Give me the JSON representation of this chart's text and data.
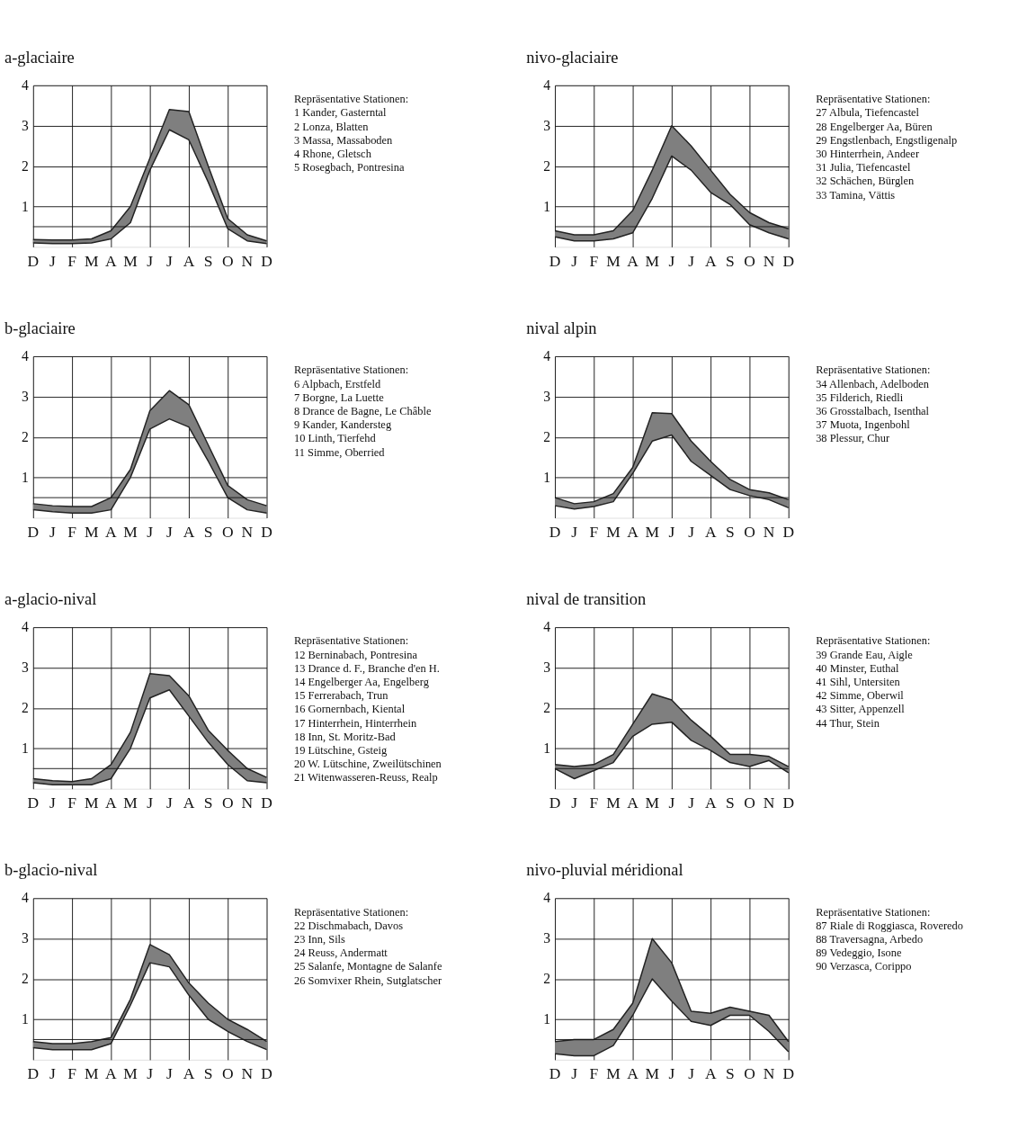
{
  "chart_data": [
    {
      "type": "line",
      "title": "a-glaciaire",
      "categories": [
        "D",
        "J",
        "F",
        "M",
        "A",
        "M",
        "J",
        "J",
        "A",
        "S",
        "O",
        "N",
        "D"
      ],
      "ylim": [
        0,
        4
      ],
      "yticks": [
        1,
        2,
        3,
        4
      ],
      "grid": true,
      "ref_lines": [
        {
          "axis": "y",
          "value": 0.5
        }
      ],
      "series": [
        {
          "color": "#222222",
          "values": [
            0.18,
            0.17,
            0.17,
            0.2,
            0.4,
            1.0,
            2.2,
            3.4,
            3.35,
            2.0,
            0.7,
            0.3,
            0.15
          ],
          "upper": [
            0.18,
            0.17,
            0.17,
            0.2,
            0.4,
            1.0,
            2.2,
            3.4,
            3.35,
            2.0,
            0.7,
            0.3,
            0.15
          ],
          "lower": [
            0.1,
            0.08,
            0.08,
            0.1,
            0.2,
            0.6,
            1.9,
            2.9,
            2.65,
            1.6,
            0.45,
            0.15,
            0.08
          ]
        },
        {
          "color": "#222222",
          "values": [
            0.1,
            0.08,
            0.08,
            0.1,
            0.2,
            0.6,
            1.9,
            2.9,
            2.65,
            1.6,
            0.45,
            0.15,
            0.08
          ]
        }
      ],
      "annotations": [
        "Repräsentative Stationen:",
        "1   Kander, Gasterntal",
        "2   Lonza, Blatten",
        "3   Massa, Massaboden",
        "4   Rhone, Gletsch",
        "5   Rosegbach, Pontresina"
      ]
    },
    {
      "type": "line",
      "title": "nivo-glaciaire",
      "categories": [
        "D",
        "J",
        "F",
        "M",
        "A",
        "M",
        "J",
        "J",
        "A",
        "S",
        "O",
        "N",
        "D"
      ],
      "ylim": [
        0,
        4
      ],
      "yticks": [
        1,
        2,
        3,
        4
      ],
      "grid": true,
      "ref_lines": [
        {
          "axis": "y",
          "value": 0.5
        }
      ],
      "series": [
        {
          "color": "#222222",
          "values": [
            0.4,
            0.3,
            0.3,
            0.4,
            0.9,
            1.9,
            3.0,
            2.5,
            1.9,
            1.3,
            0.85,
            0.6,
            0.45
          ],
          "upper": [
            0.4,
            0.3,
            0.3,
            0.4,
            0.9,
            1.9,
            3.0,
            2.5,
            1.9,
            1.3,
            0.85,
            0.6,
            0.45
          ],
          "lower": [
            0.25,
            0.15,
            0.15,
            0.2,
            0.35,
            1.2,
            2.25,
            1.9,
            1.35,
            1.05,
            0.55,
            0.35,
            0.2
          ]
        },
        {
          "color": "#222222",
          "values": [
            0.25,
            0.15,
            0.15,
            0.2,
            0.35,
            1.2,
            2.25,
            1.9,
            1.35,
            1.05,
            0.55,
            0.35,
            0.2
          ]
        }
      ],
      "annotations": [
        "Repräsentative Stationen:",
        "27 Albula, Tiefencastel",
        "28 Engelberger Aa, Büren",
        "29 Engstlenbach, Engstligenalp",
        "30 Hinterrhein, Andeer",
        "31 Julia, Tiefencastel",
        "32 Schächen, Bürglen",
        "33 Tamina, Vättis"
      ]
    },
    {
      "type": "line",
      "title": "b-glaciaire",
      "categories": [
        "D",
        "J",
        "F",
        "M",
        "A",
        "M",
        "J",
        "J",
        "A",
        "S",
        "O",
        "N",
        "D"
      ],
      "ylim": [
        0,
        4
      ],
      "yticks": [
        1,
        2,
        3,
        4
      ],
      "grid": true,
      "ref_lines": [
        {
          "axis": "y",
          "value": 0.5
        }
      ],
      "series": [
        {
          "color": "#222222",
          "values": [
            0.35,
            0.3,
            0.28,
            0.28,
            0.5,
            1.2,
            2.65,
            3.15,
            2.8,
            1.8,
            0.8,
            0.45,
            0.3
          ],
          "upper": [
            0.35,
            0.3,
            0.28,
            0.28,
            0.5,
            1.2,
            2.65,
            3.15,
            2.8,
            1.8,
            0.8,
            0.45,
            0.3
          ],
          "lower": [
            0.2,
            0.15,
            0.12,
            0.12,
            0.2,
            1.0,
            2.2,
            2.45,
            2.25,
            1.4,
            0.5,
            0.2,
            0.12
          ]
        },
        {
          "color": "#222222",
          "values": [
            0.2,
            0.15,
            0.12,
            0.12,
            0.2,
            1.0,
            2.2,
            2.45,
            2.25,
            1.4,
            0.5,
            0.2,
            0.12
          ]
        }
      ],
      "annotations": [
        "Repräsentative Stationen:",
        "  6 Alpbach, Erstfeld",
        "  7 Borgne, La Luette",
        "  8 Drance de Bagne, Le Châble",
        "  9 Kander, Kandersteg",
        "10 Linth, Tierfehd",
        "11 Simme, Oberried"
      ]
    },
    {
      "type": "line",
      "title": "nival alpin",
      "categories": [
        "D",
        "J",
        "F",
        "M",
        "A",
        "M",
        "J",
        "J",
        "A",
        "S",
        "O",
        "N",
        "D"
      ],
      "ylim": [
        0,
        4
      ],
      "yticks": [
        1,
        2,
        3,
        4
      ],
      "grid": true,
      "ref_lines": [
        {
          "axis": "y",
          "value": 0.5
        }
      ],
      "series": [
        {
          "color": "#222222",
          "values": [
            0.5,
            0.35,
            0.4,
            0.6,
            1.25,
            2.6,
            2.58,
            1.9,
            1.4,
            0.95,
            0.7,
            0.62,
            0.45
          ],
          "upper": [
            0.5,
            0.35,
            0.4,
            0.6,
            1.25,
            2.6,
            2.58,
            1.9,
            1.4,
            0.95,
            0.7,
            0.62,
            0.45
          ],
          "lower": [
            0.3,
            0.22,
            0.28,
            0.4,
            1.1,
            1.9,
            2.05,
            1.4,
            1.05,
            0.7,
            0.55,
            0.45,
            0.25
          ]
        },
        {
          "color": "#222222",
          "values": [
            0.3,
            0.22,
            0.28,
            0.4,
            1.1,
            1.9,
            2.05,
            1.4,
            1.05,
            0.7,
            0.55,
            0.45,
            0.25
          ]
        }
      ],
      "annotations": [
        "Repräsentative Stationen:",
        "34 Allenbach, Adelboden",
        "35 Filderich, Riedli",
        "36 Grosstalbach, Isenthal",
        "37 Muota, Ingenbohl",
        "38 Plessur, Chur"
      ]
    },
    {
      "type": "line",
      "title": "a-glacio-nival",
      "categories": [
        "D",
        "J",
        "F",
        "M",
        "A",
        "M",
        "J",
        "J",
        "A",
        "S",
        "O",
        "N",
        "D"
      ],
      "ylim": [
        0,
        4
      ],
      "yticks": [
        1,
        2,
        3,
        4
      ],
      "grid": true,
      "ref_lines": [
        {
          "axis": "y",
          "value": 0.5
        }
      ],
      "series": [
        {
          "color": "#222222",
          "values": [
            0.25,
            0.2,
            0.18,
            0.25,
            0.6,
            1.4,
            2.85,
            2.8,
            2.3,
            1.45,
            0.95,
            0.5,
            0.28
          ],
          "upper": [
            0.25,
            0.2,
            0.18,
            0.25,
            0.6,
            1.4,
            2.85,
            2.8,
            2.3,
            1.45,
            0.95,
            0.5,
            0.28
          ],
          "lower": [
            0.15,
            0.1,
            0.1,
            0.1,
            0.25,
            1.0,
            2.25,
            2.45,
            1.8,
            1.15,
            0.6,
            0.2,
            0.15
          ]
        },
        {
          "color": "#222222",
          "values": [
            0.15,
            0.1,
            0.1,
            0.1,
            0.25,
            1.0,
            2.25,
            2.45,
            1.8,
            1.15,
            0.6,
            0.2,
            0.15
          ]
        }
      ],
      "annotations": [
        "Repräsentative Stationen:",
        "12 Berninabach, Pontresina",
        "13 Drance d. F., Branche d'en H.",
        "14 Engelberger Aa, Engelberg",
        "15 Ferrerabach, Trun",
        "16 Gornernbach, Kiental",
        "17 Hinterrhein, Hinterrhein",
        "18 Inn, St. Moritz-Bad",
        "19 Lütschine, Gsteig",
        "20 W. Lütschine, Zweilütschinen",
        "21 Witenwasseren-Reuss, Realp"
      ]
    },
    {
      "type": "line",
      "title": "nival de transition",
      "categories": [
        "D",
        "J",
        "F",
        "M",
        "A",
        "M",
        "J",
        "J",
        "A",
        "S",
        "O",
        "N",
        "D"
      ],
      "ylim": [
        0,
        4
      ],
      "yticks": [
        1,
        2,
        3,
        4
      ],
      "grid": true,
      "ref_lines": [
        {
          "axis": "y",
          "value": 0.5
        }
      ],
      "series": [
        {
          "color": "#222222",
          "values": [
            0.6,
            0.55,
            0.6,
            0.85,
            1.6,
            2.35,
            2.2,
            1.7,
            1.3,
            0.85,
            0.85,
            0.8,
            0.55
          ],
          "upper": [
            0.6,
            0.55,
            0.6,
            0.85,
            1.6,
            2.35,
            2.2,
            1.7,
            1.3,
            0.85,
            0.85,
            0.8,
            0.55
          ],
          "lower": [
            0.5,
            0.25,
            0.45,
            0.65,
            1.3,
            1.6,
            1.65,
            1.2,
            0.95,
            0.65,
            0.55,
            0.7,
            0.4
          ]
        },
        {
          "color": "#222222",
          "values": [
            0.5,
            0.25,
            0.45,
            0.65,
            1.3,
            1.6,
            1.65,
            1.2,
            0.95,
            0.65,
            0.55,
            0.7,
            0.4
          ]
        }
      ],
      "annotations": [
        "Repräsentative Stationen:",
        "39 Grande Eau, Aigle",
        "40 Minster, Euthal",
        "41 Sihl, Untersiten",
        "42 Simme, Oberwil",
        "43 Sitter, Appenzell",
        "44 Thur, Stein"
      ]
    },
    {
      "type": "line",
      "title": "b-glacio-nival",
      "categories": [
        "D",
        "J",
        "F",
        "M",
        "A",
        "M",
        "J",
        "J",
        "A",
        "S",
        "O",
        "N",
        "D"
      ],
      "ylim": [
        0,
        4
      ],
      "yticks": [
        1,
        2,
        3,
        4
      ],
      "grid": true,
      "ref_lines": [
        {
          "axis": "y",
          "value": 0.5
        }
      ],
      "series": [
        {
          "color": "#222222",
          "values": [
            0.45,
            0.4,
            0.4,
            0.45,
            0.55,
            1.5,
            2.85,
            2.6,
            1.9,
            1.4,
            1.0,
            0.75,
            0.45
          ],
          "upper": [
            0.45,
            0.4,
            0.4,
            0.45,
            0.55,
            1.5,
            2.85,
            2.6,
            1.9,
            1.4,
            1.0,
            0.75,
            0.45
          ],
          "lower": [
            0.3,
            0.25,
            0.25,
            0.25,
            0.4,
            1.35,
            2.4,
            2.3,
            1.6,
            1.0,
            0.7,
            0.45,
            0.25
          ]
        },
        {
          "color": "#222222",
          "values": [
            0.3,
            0.25,
            0.25,
            0.25,
            0.4,
            1.35,
            2.4,
            2.3,
            1.6,
            1.0,
            0.7,
            0.45,
            0.25
          ]
        }
      ],
      "annotations": [
        "Repräsentative Stationen:",
        "22 Dischmabach, Davos",
        "23 Inn, Sils",
        "24 Reuss, Andermatt",
        "25 Salanfe, Montagne de Salanfe",
        "26 Somvixer Rhein, Sutglatscher"
      ]
    },
    {
      "type": "line",
      "title": "nivo-pluvial méridional",
      "categories": [
        "D",
        "J",
        "F",
        "M",
        "A",
        "M",
        "J",
        "J",
        "A",
        "S",
        "O",
        "N",
        "D"
      ],
      "ylim": [
        0,
        4
      ],
      "yticks": [
        1,
        2,
        3,
        4
      ],
      "grid": true,
      "ref_lines": [
        {
          "axis": "y",
          "value": 0.5
        }
      ],
      "series": [
        {
          "color": "#222222",
          "values": [
            0.45,
            0.5,
            0.5,
            0.75,
            1.4,
            3.0,
            2.4,
            1.2,
            1.15,
            1.3,
            1.2,
            1.1,
            0.45
          ],
          "upper": [
            0.45,
            0.5,
            0.5,
            0.75,
            1.4,
            3.0,
            2.4,
            1.2,
            1.15,
            1.3,
            1.2,
            1.1,
            0.45
          ],
          "lower": [
            0.15,
            0.1,
            0.1,
            0.35,
            1.1,
            2.0,
            1.45,
            0.95,
            0.85,
            1.1,
            1.1,
            0.7,
            0.2
          ]
        },
        {
          "color": "#222222",
          "values": [
            0.15,
            0.1,
            0.1,
            0.35,
            1.1,
            2.0,
            1.45,
            0.95,
            0.85,
            1.1,
            1.1,
            0.7,
            0.2
          ]
        }
      ],
      "annotations": [
        "Repräsentative Stationen:",
        "87 Riale di Roggiasca, Roveredo",
        "88 Traversagna, Arbedo",
        "89 Vedeggio, Isone",
        "90 Verzasca, Corippo"
      ]
    }
  ]
}
